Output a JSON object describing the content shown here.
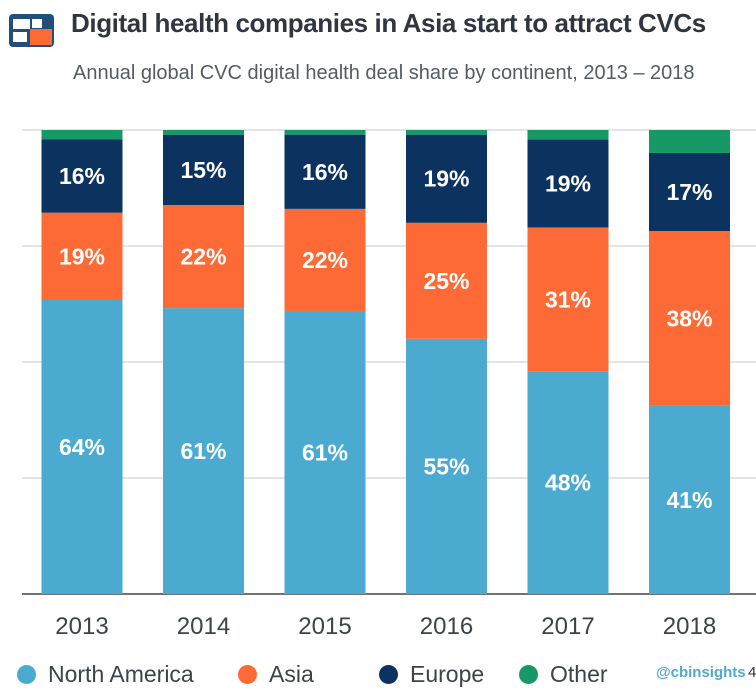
{
  "header": {
    "title": "Digital health companies in Asia start to attract CVCs",
    "subtitle": "Annual global CVC digital health deal share by continent, 2013 – 2018"
  },
  "colors": {
    "north_america": "#4aaacf",
    "asia": "#fd6a35",
    "europe": "#0c3260",
    "other": "#169967",
    "logo_blue": "#1f4f7a",
    "logo_orange": "#fd6a35"
  },
  "chart_data": {
    "type": "bar",
    "stacked": true,
    "title": "Digital health companies in Asia start to attract CVCs",
    "subtitle": "Annual global CVC digital health deal share by continent, 2013 – 2018",
    "xlabel": "",
    "ylabel": "",
    "ylim": [
      0,
      100
    ],
    "grid": true,
    "legend_position": "bottom",
    "categories": [
      "2013",
      "2014",
      "2015",
      "2016",
      "2017",
      "2018"
    ],
    "series": [
      {
        "name": "North America",
        "color": "#4aaacf",
        "values": [
          64,
          61,
          61,
          55,
          48,
          41
        ],
        "labels": [
          "64%",
          "61%",
          "61%",
          "55%",
          "48%",
          "41%"
        ]
      },
      {
        "name": "Asia",
        "color": "#fd6a35",
        "values": [
          19,
          22,
          22,
          25,
          31,
          38
        ],
        "labels": [
          "19%",
          "22%",
          "22%",
          "25%",
          "31%",
          "38%"
        ]
      },
      {
        "name": "Europe",
        "color": "#0c3260",
        "values": [
          16,
          15,
          16,
          19,
          19,
          17
        ],
        "labels": [
          "16%",
          "15%",
          "16%",
          "19%",
          "19%",
          "17%"
        ]
      },
      {
        "name": "Other",
        "color": "#169967",
        "values": [
          2,
          1,
          1,
          1,
          2,
          5
        ],
        "labels": [
          "",
          "",
          "",
          "",
          "",
          ""
        ]
      }
    ]
  },
  "legend": {
    "items": [
      "North America",
      "Asia",
      "Europe",
      "Other"
    ]
  },
  "watermark": {
    "text": "@cbinsights",
    "tail": "4"
  }
}
